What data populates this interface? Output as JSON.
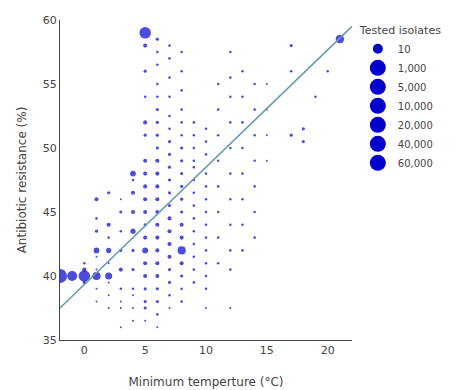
{
  "chart_data": {
    "type": "scatter",
    "xlabel": "Minimum temperture (°C)",
    "ylabel": "Antibiotic resistance (%)",
    "xlim": [
      -2,
      22
    ],
    "ylim": [
      35,
      60
    ],
    "xticks": [
      0,
      5,
      10,
      15,
      20
    ],
    "yticks": [
      35,
      40,
      45,
      50,
      55,
      60
    ],
    "grid": false,
    "legend": "right",
    "size_legend": {
      "title": "Tested isolates",
      "entries": [
        10,
        {
          "value": 1000,
          "label": "1,000"
        },
        {
          "value": 5000,
          "label": "5,000"
        },
        {
          "value": 10000,
          "label": "10,000"
        },
        {
          "value": 20000,
          "label": "20,000"
        },
        {
          "value": 40000,
          "label": "40,000"
        },
        {
          "value": 60000,
          "label": "60,000"
        }
      ]
    },
    "series": [
      {
        "type": "scatter",
        "marker": "circle",
        "color": "#0000CD",
        "points": [
          [
            -2,
            40.0,
            60000
          ],
          [
            -1,
            40.0,
            30000
          ],
          [
            0,
            40.0,
            40000
          ],
          [
            0,
            40.5,
            5000
          ],
          [
            0,
            39.5,
            3000
          ],
          [
            0,
            41.0,
            2000
          ],
          [
            1,
            40.0,
            20000
          ],
          [
            1,
            42.0,
            10000
          ],
          [
            1,
            46.0,
            5000
          ],
          [
            1,
            43.5,
            3000
          ],
          [
            1,
            44.5,
            2000
          ],
          [
            1,
            41.5,
            1000
          ],
          [
            1,
            40.5,
            500
          ],
          [
            1,
            39.0,
            500
          ],
          [
            1,
            38.0,
            300
          ],
          [
            2,
            40.0,
            15000
          ],
          [
            2,
            42.0,
            8000
          ],
          [
            2,
            44.0,
            5000
          ],
          [
            2,
            46.5,
            3000
          ],
          [
            2,
            43.0,
            2000
          ],
          [
            2,
            41.0,
            1000
          ],
          [
            2,
            39.5,
            800
          ],
          [
            2,
            38.5,
            500
          ],
          [
            2,
            37.5,
            300
          ],
          [
            3,
            45.0,
            3000
          ],
          [
            3,
            43.5,
            2000
          ],
          [
            3,
            42.0,
            3000
          ],
          [
            3,
            40.5,
            5000
          ],
          [
            3,
            39.0,
            2000
          ],
          [
            3,
            37.5,
            1000
          ],
          [
            3,
            36.0,
            500
          ],
          [
            3,
            38.0,
            500
          ],
          [
            3,
            46.0,
            1000
          ],
          [
            4,
            48.0,
            10000
          ],
          [
            4,
            46.5,
            5000
          ],
          [
            4,
            45.0,
            5000
          ],
          [
            4,
            43.5,
            8000
          ],
          [
            4,
            42.0,
            3000
          ],
          [
            4,
            40.5,
            3000
          ],
          [
            4,
            39.0,
            2000
          ],
          [
            4,
            37.5,
            1000
          ],
          [
            4,
            36.5,
            500
          ],
          [
            4,
            38.5,
            1000
          ],
          [
            4,
            47.5,
            2000
          ],
          [
            5,
            59.0,
            40000
          ],
          [
            5,
            58.0,
            5000
          ],
          [
            5,
            56.0,
            3000
          ],
          [
            5,
            54.0,
            2000
          ],
          [
            5,
            52.0,
            5000
          ],
          [
            5,
            51.0,
            3000
          ],
          [
            5,
            49.0,
            5000
          ],
          [
            5,
            48.0,
            5000
          ],
          [
            5,
            47.0,
            5000
          ],
          [
            5,
            46.0,
            5000
          ],
          [
            5,
            45.0,
            5000
          ],
          [
            5,
            44.0,
            3000
          ],
          [
            5,
            43.0,
            5000
          ],
          [
            5,
            42.0,
            10000
          ],
          [
            5,
            41.0,
            5000
          ],
          [
            5,
            40.0,
            5000
          ],
          [
            5,
            39.0,
            3000
          ],
          [
            5,
            38.0,
            3000
          ],
          [
            5,
            37.5,
            3000
          ],
          [
            5,
            36.5,
            1000
          ],
          [
            6,
            58.5,
            3000
          ],
          [
            6,
            57.5,
            2000
          ],
          [
            6,
            56.5,
            2000
          ],
          [
            6,
            55.0,
            2000
          ],
          [
            6,
            54.0,
            2000
          ],
          [
            6,
            53.0,
            3000
          ],
          [
            6,
            52.0,
            3000
          ],
          [
            6,
            51.0,
            3000
          ],
          [
            6,
            50.0,
            3000
          ],
          [
            6,
            49.0,
            5000
          ],
          [
            6,
            48.0,
            5000
          ],
          [
            6,
            47.0,
            5000
          ],
          [
            6,
            46.0,
            5000
          ],
          [
            6,
            45.0,
            5000
          ],
          [
            6,
            44.0,
            5000
          ],
          [
            6,
            43.0,
            5000
          ],
          [
            6,
            42.0,
            5000
          ],
          [
            6,
            41.0,
            5000
          ],
          [
            6,
            40.0,
            5000
          ],
          [
            6,
            39.0,
            3000
          ],
          [
            6,
            38.0,
            3000
          ],
          [
            6,
            37.0,
            2000
          ],
          [
            6,
            36.0,
            1000
          ],
          [
            7,
            58.0,
            2000
          ],
          [
            7,
            57.0,
            2000
          ],
          [
            7,
            55.5,
            2000
          ],
          [
            7,
            54.0,
            2000
          ],
          [
            7,
            52.5,
            2000
          ],
          [
            7,
            51.5,
            2000
          ],
          [
            7,
            50.5,
            3000
          ],
          [
            7,
            49.5,
            3000
          ],
          [
            7,
            48.5,
            3000
          ],
          [
            7,
            47.5,
            3000
          ],
          [
            7,
            46.5,
            3000
          ],
          [
            7,
            45.5,
            3000
          ],
          [
            7,
            44.5,
            5000
          ],
          [
            7,
            43.5,
            5000
          ],
          [
            7,
            42.5,
            5000
          ],
          [
            7,
            41.5,
            5000
          ],
          [
            7,
            40.5,
            3000
          ],
          [
            7,
            39.5,
            3000
          ],
          [
            7,
            38.5,
            2000
          ],
          [
            7,
            37.5,
            1000
          ],
          [
            8,
            57.5,
            2000
          ],
          [
            8,
            56.0,
            2000
          ],
          [
            8,
            54.5,
            2000
          ],
          [
            8,
            53.0,
            2000
          ],
          [
            8,
            52.0,
            2000
          ],
          [
            8,
            51.0,
            2000
          ],
          [
            8,
            50.0,
            3000
          ],
          [
            8,
            49.0,
            3000
          ],
          [
            8,
            48.0,
            3000
          ],
          [
            8,
            47.0,
            3000
          ],
          [
            8,
            46.0,
            3000
          ],
          [
            8,
            45.0,
            3000
          ],
          [
            8,
            44.0,
            5000
          ],
          [
            8,
            43.0,
            5000
          ],
          [
            8,
            42.0,
            20000
          ],
          [
            8,
            41.0,
            5000
          ],
          [
            8,
            40.0,
            3000
          ],
          [
            8,
            39.0,
            2000
          ],
          [
            8,
            38.0,
            2000
          ],
          [
            9,
            52.0,
            2000
          ],
          [
            9,
            51.0,
            2000
          ],
          [
            9,
            50.0,
            2000
          ],
          [
            9,
            49.0,
            2000
          ],
          [
            9,
            48.5,
            2000
          ],
          [
            9,
            47.5,
            2000
          ],
          [
            9,
            46.5,
            2000
          ],
          [
            9,
            45.5,
            2000
          ],
          [
            9,
            44.5,
            2000
          ],
          [
            9,
            43.5,
            2000
          ],
          [
            9,
            42.5,
            2000
          ],
          [
            9,
            41.5,
            2000
          ],
          [
            9,
            40.5,
            2000
          ],
          [
            9,
            39.5,
            2000
          ],
          [
            10,
            51.5,
            2000
          ],
          [
            10,
            50.5,
            2000
          ],
          [
            10,
            49.5,
            2000
          ],
          [
            10,
            48.0,
            2000
          ],
          [
            10,
            47.0,
            2000
          ],
          [
            10,
            46.0,
            2000
          ],
          [
            10,
            45.0,
            2000
          ],
          [
            10,
            44.0,
            2000
          ],
          [
            10,
            43.0,
            2000
          ],
          [
            10,
            42.0,
            2000
          ],
          [
            10,
            41.0,
            2000
          ],
          [
            10,
            40.0,
            2000
          ],
          [
            10,
            39.0,
            2000
          ],
          [
            10,
            37.5,
            500
          ],
          [
            11,
            55.0,
            2000
          ],
          [
            11,
            53.0,
            2000
          ],
          [
            11,
            51.0,
            2000
          ],
          [
            11,
            49.0,
            2000
          ],
          [
            11,
            47.0,
            2000
          ],
          [
            11,
            45.0,
            2000
          ],
          [
            11,
            43.0,
            2000
          ],
          [
            11,
            41.0,
            2000
          ],
          [
            12,
            57.5,
            2000
          ],
          [
            12,
            55.5,
            2000
          ],
          [
            12,
            54.0,
            2000
          ],
          [
            12,
            52.0,
            2000
          ],
          [
            12,
            50.0,
            2000
          ],
          [
            12,
            48.0,
            2000
          ],
          [
            12,
            46.0,
            2000
          ],
          [
            12,
            44.0,
            2000
          ],
          [
            12,
            42.0,
            2000
          ],
          [
            12,
            40.5,
            2000
          ],
          [
            12,
            37.5,
            500
          ],
          [
            13,
            56.0,
            2000
          ],
          [
            13,
            54.0,
            2000
          ],
          [
            13,
            52.0,
            2000
          ],
          [
            13,
            50.0,
            2000
          ],
          [
            13,
            48.0,
            2000
          ],
          [
            13,
            46.0,
            2000
          ],
          [
            13,
            44.0,
            2000
          ],
          [
            13,
            42.0,
            2000
          ],
          [
            14,
            55.0,
            2000
          ],
          [
            14,
            53.0,
            2000
          ],
          [
            14,
            51.0,
            2000
          ],
          [
            14,
            49.0,
            2000
          ],
          [
            14,
            47.0,
            2000
          ],
          [
            14,
            45.0,
            2000
          ],
          [
            14,
            43.0,
            2000
          ],
          [
            15,
            55.0,
            1000
          ],
          [
            15,
            53.0,
            1000
          ],
          [
            15,
            51.0,
            1000
          ],
          [
            15,
            49.0,
            1000
          ],
          [
            17,
            58.0,
            3000
          ],
          [
            17,
            51.0,
            3000
          ],
          [
            17,
            56.0,
            2000
          ],
          [
            18,
            50.5,
            3000
          ],
          [
            18,
            51.5,
            3000
          ],
          [
            19,
            54.0,
            2000
          ],
          [
            20,
            56.0,
            2000
          ],
          [
            21,
            58.5,
            20000
          ]
        ]
      },
      {
        "type": "line",
        "color": "#6699AA",
        "x": [
          -2,
          22
        ],
        "y": [
          37.5,
          59.5
        ]
      }
    ]
  }
}
